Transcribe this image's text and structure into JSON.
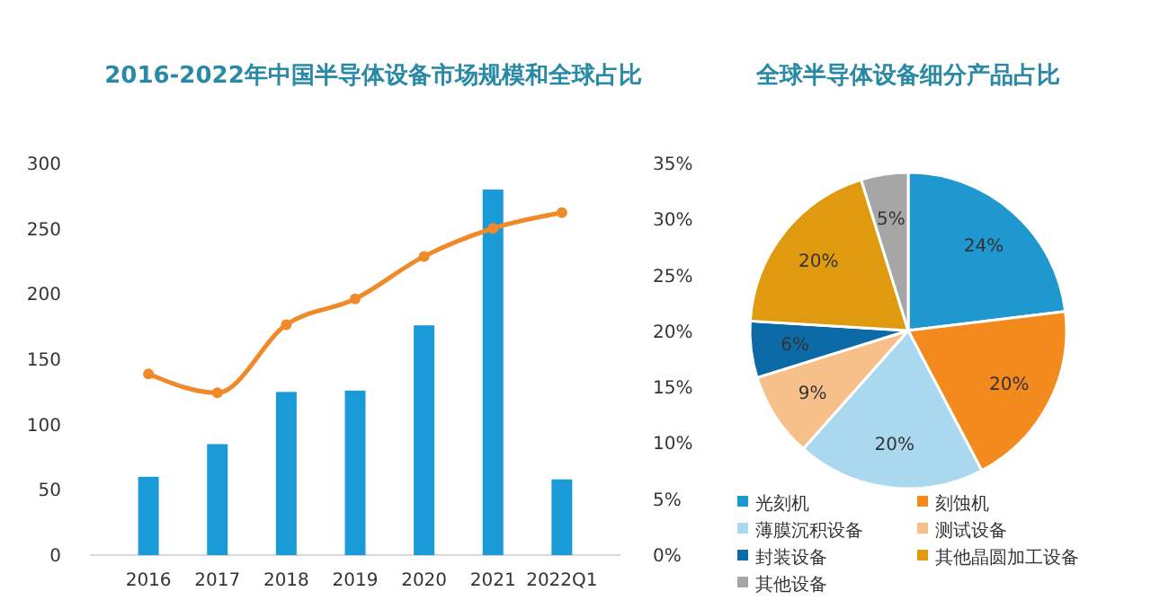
{
  "chart_data": [
    {
      "type": "bar",
      "title": "2016-2022年中国半导体设备市场规模和全球占比",
      "categories": [
        "2016",
        "2017",
        "2018",
        "2019",
        "2020",
        "2021",
        "2022Q1"
      ],
      "series": [
        {
          "type": "bar",
          "color": "#1a9ad6",
          "values": [
            60,
            85,
            125,
            126,
            176,
            280,
            58
          ]
        },
        {
          "type": "line",
          "axis": "y2",
          "color": "#f0892a",
          "marker": "circle",
          "values": [
            16.2,
            14.5,
            20.6,
            22.9,
            26.7,
            29.2,
            30.6
          ]
        }
      ],
      "ylim": [
        0,
        300
      ],
      "yticks": [
        0,
        50,
        100,
        150,
        200,
        250,
        300
      ],
      "y2lim": [
        0,
        35
      ],
      "y2ticks": [
        {
          "value": 0,
          "label": "0%"
        },
        {
          "value": 5,
          "label": "5%"
        },
        {
          "value": 10,
          "label": "10%"
        },
        {
          "value": 15,
          "label": "15%"
        },
        {
          "value": 20,
          "label": "20%"
        },
        {
          "value": 25,
          "label": "25%"
        },
        {
          "value": 30,
          "label": "30%"
        },
        {
          "value": 35,
          "label": "35%"
        }
      ],
      "grid": false,
      "legend": false
    },
    {
      "type": "pie",
      "title": "全球半导体设备细分产品占比",
      "categories": [
        "光刻机",
        "刻蚀机",
        "薄膜沉积设备",
        "测试设备",
        "封装设备",
        "其他晶圆加工设备",
        "其他设备"
      ],
      "values": [
        24,
        20,
        20,
        9,
        6,
        20,
        5
      ],
      "colors": [
        "#1f97cf",
        "#f28a1e",
        "#a9d8ef",
        "#f7c08a",
        "#0c6aa6",
        "#e09a0f",
        "#a6a6a6"
      ],
      "value_labels": [
        "24%",
        "20%",
        "20%",
        "9%",
        "6%",
        "20%",
        "5%"
      ],
      "legend": "bottom"
    }
  ]
}
